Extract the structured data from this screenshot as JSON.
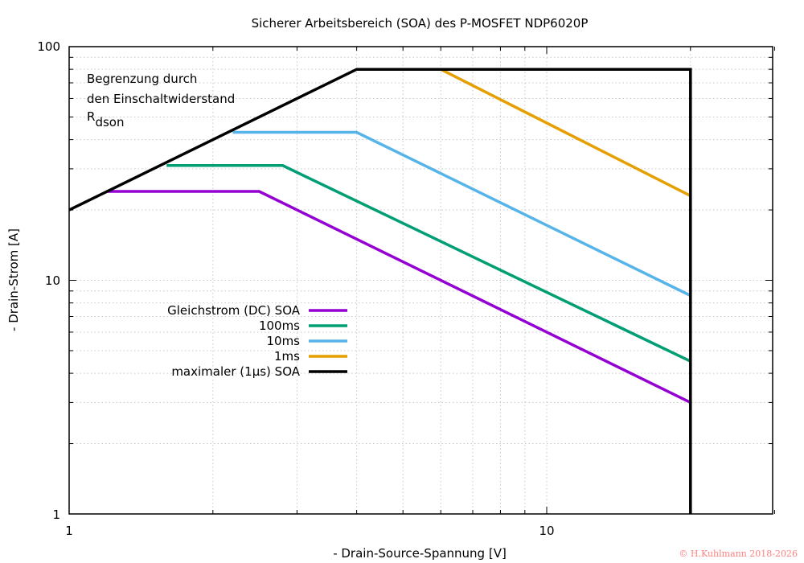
{
  "chart_data": {
    "type": "line",
    "title": "Sicherer Arbeitsbereich (SOA) des P-MOSFET NDP6020P",
    "xlabel": "- Drain-Source-Spannung [V]",
    "ylabel": "- Drain-Strom [A]",
    "x_scale": "log",
    "y_scale": "log",
    "xlim": [
      1,
      30
    ],
    "ylim": [
      1,
      100
    ],
    "x_tick_labels": [
      "1",
      "10"
    ],
    "y_tick_labels": [
      "1",
      "10",
      "100"
    ],
    "grid": true,
    "legend_position": "center-left",
    "annotation": {
      "line1": "Begrenzung durch",
      "line2": "den Einschaltwiderstand",
      "r_main": "R",
      "r_sub": "dson"
    },
    "copyright": "© H.Kuhlmann 2018-2026",
    "series": [
      {
        "name": "Gleichstrom (DC) SOA",
        "color": "#9400d3",
        "x": [
          1.2,
          2.5,
          20,
          20
        ],
        "y": [
          24,
          24,
          3.0,
          3.0
        ]
      },
      {
        "name": "100ms",
        "color": "#009e73",
        "x": [
          1.6,
          2.8,
          20
        ],
        "y": [
          31,
          31,
          4.5
        ]
      },
      {
        "name": "10ms",
        "color": "#56b4e9",
        "x": [
          2.2,
          4.0,
          20
        ],
        "y": [
          43,
          43,
          8.6
        ]
      },
      {
        "name": "1ms",
        "color": "#e69f00",
        "x": [
          6.0,
          20
        ],
        "y": [
          80,
          23
        ]
      },
      {
        "name": "maximaler (1µs) SOA",
        "color": "#000000",
        "x": [
          1,
          4.0,
          20,
          20
        ],
        "y": [
          20,
          80,
          80,
          1
        ]
      }
    ]
  }
}
